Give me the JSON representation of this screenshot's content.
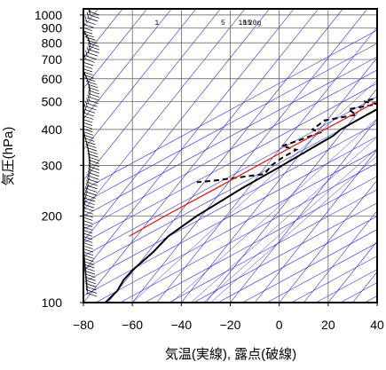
{
  "chart_data": {
    "type": "line",
    "title": "",
    "xlabel": "気温(実線), 露点(破線)",
    "ylabel": "気圧(hPa)",
    "x_axis": {
      "ticks": [
        -80,
        -60,
        -40,
        -20,
        0,
        20,
        40
      ],
      "lim": [
        -80,
        40
      ],
      "unit": "°C"
    },
    "y_axis": {
      "ticks": [
        100,
        200,
        300,
        400,
        500,
        600,
        700,
        800,
        900,
        1000
      ],
      "lim": [
        1050,
        100
      ],
      "scale": "log",
      "inverted": true
    },
    "skew": "isotherms slant to the right with height (skew-T)",
    "grid": true,
    "mixing_ratio_labels": [
      "1",
      "5",
      "10",
      "15",
      "20g"
    ],
    "series": [
      {
        "role": "temperature",
        "style": "solid",
        "color": "#000000",
        "points": [
          [
            1000,
            19
          ],
          [
            975,
            17
          ],
          [
            950,
            15.5
          ],
          [
            925,
            13.5
          ],
          [
            900,
            12
          ],
          [
            850,
            8.5
          ],
          [
            800,
            4.5
          ],
          [
            750,
            0.5
          ],
          [
            700,
            -3
          ],
          [
            650,
            -7
          ],
          [
            600,
            -11
          ],
          [
            550,
            -15.5
          ],
          [
            500,
            -20
          ],
          [
            450,
            -25.5
          ],
          [
            400,
            -31.5
          ],
          [
            380,
            -32.5
          ],
          [
            350,
            -36.5
          ],
          [
            300,
            -43.5
          ],
          [
            250,
            -52.5
          ],
          [
            200,
            -62
          ],
          [
            170,
            -67
          ],
          [
            150,
            -68
          ],
          [
            130,
            -70.5
          ],
          [
            120,
            -71
          ],
          [
            110,
            -70
          ],
          [
            100,
            -71
          ]
        ]
      },
      {
        "role": "dewpoint",
        "style": "dashed",
        "color": "#000000",
        "points": [
          [
            1000,
            16
          ],
          [
            975,
            13
          ],
          [
            950,
            11
          ],
          [
            925,
            9
          ],
          [
            900,
            7
          ],
          [
            850,
            3
          ],
          [
            800,
            -1
          ],
          [
            750,
            -5
          ],
          [
            700,
            -10
          ],
          [
            650,
            -13
          ],
          [
            600,
            -17
          ],
          [
            560,
            -22
          ],
          [
            530,
            -23
          ],
          [
            500,
            -31
          ],
          [
            490,
            -25
          ],
          [
            470,
            -35
          ],
          [
            450,
            -30
          ],
          [
            430,
            -41
          ],
          [
            400,
            -43
          ],
          [
            390,
            -39
          ],
          [
            370,
            -44
          ],
          [
            350,
            -50
          ],
          [
            340,
            -43
          ],
          [
            320,
            -46
          ],
          [
            300,
            -48
          ],
          [
            280,
            -48
          ],
          [
            265,
            -67
          ],
          [
            262,
            -73
          ]
        ]
      },
      {
        "role": "parcel",
        "style": "solid",
        "color": "#dd2222",
        "points": [
          [
            1000,
            18
          ],
          [
            975,
            15.5
          ],
          [
            950,
            13.5
          ],
          [
            925,
            11.5
          ],
          [
            900,
            9.5
          ],
          [
            850,
            5.5
          ],
          [
            800,
            1.5
          ],
          [
            750,
            -2.5
          ],
          [
            700,
            -6.5
          ],
          [
            650,
            -11
          ],
          [
            600,
            -15.5
          ],
          [
            550,
            -20.5
          ],
          [
            500,
            -26
          ],
          [
            450,
            -31.5
          ],
          [
            400,
            -38
          ],
          [
            350,
            -45.5
          ],
          [
            300,
            -53.5
          ],
          [
            250,
            -63
          ],
          [
            200,
            -75
          ],
          [
            170,
            -83
          ]
        ]
      }
    ],
    "wind_profile": "wind barbs along the left edge from 1000 to 100 hPa",
    "colors": {
      "guides": "#2b2bdd",
      "grid": "#555555",
      "temperature": "#000000",
      "parcel": "#dd2222",
      "frame": "#000000"
    }
  }
}
